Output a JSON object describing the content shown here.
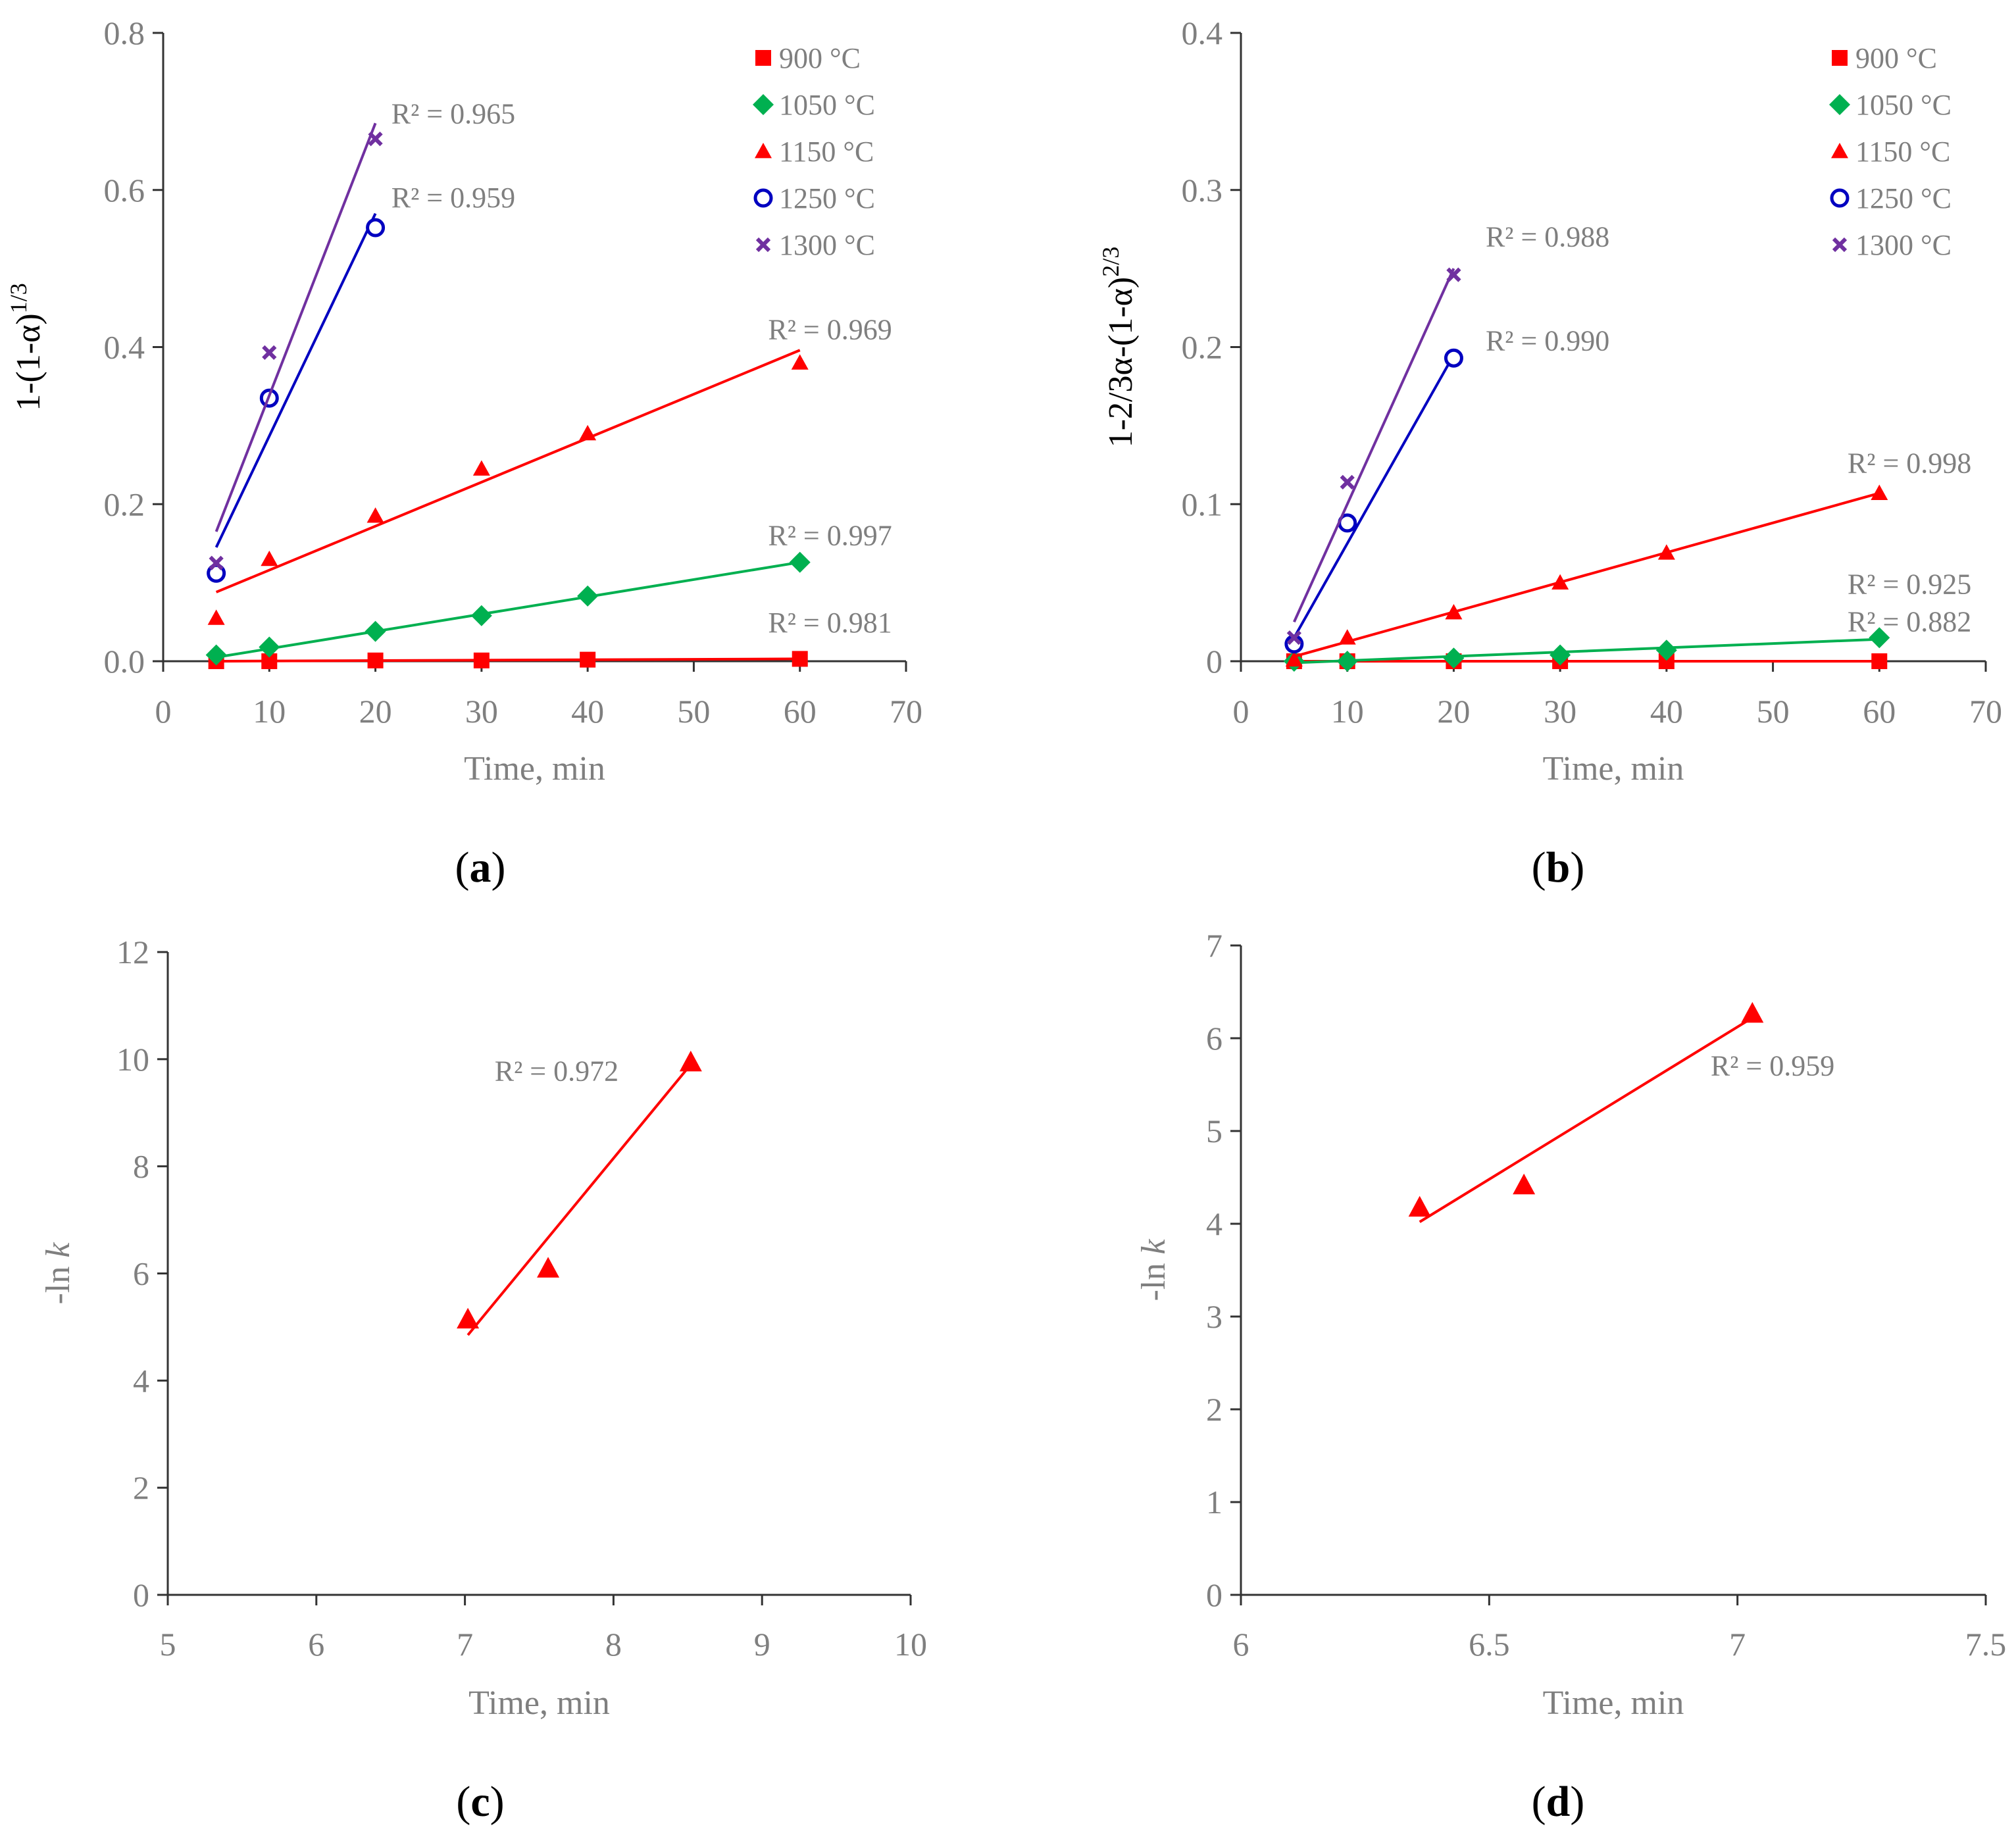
{
  "colors": {
    "axis": "#333333",
    "text": "#7f7f7f",
    "label": "#000000",
    "red": "#ff0000",
    "green": "#00b050",
    "blue": "#0000c0",
    "purple": "#7030a0"
  },
  "chart_data": [
    {
      "id": "a",
      "type": "scatter",
      "panel_label": {
        "open": "(",
        "letter": "a",
        "close": ")"
      },
      "xlabel": "Time, min",
      "ylabel": {
        "base": "1-(1-α)",
        "sup": "1/3"
      },
      "xlim": [
        0,
        70
      ],
      "ylim": [
        0,
        0.8
      ],
      "xticks": [
        "0",
        "10",
        "20",
        "30",
        "40",
        "50",
        "60",
        "70"
      ],
      "yticks": [
        "0.0",
        "0.2",
        "0.4",
        "0.6",
        "0.8"
      ],
      "legend_position": "top-right",
      "series": [
        {
          "name": "900 °C",
          "marker": "square",
          "color": "#ff0000",
          "x": [
            5,
            10,
            20,
            30,
            40,
            60
          ],
          "y": [
            0.0,
            0.0,
            0.001,
            0.001,
            0.002,
            0.003
          ],
          "fit": [
            [
              5,
              0.0
            ],
            [
              60,
              0.003
            ]
          ],
          "r2": {
            "text": "R² = 0.981",
            "x": 60,
            "y": 0.037
          }
        },
        {
          "name": "1050 °C",
          "marker": "diamond",
          "color": "#00b050",
          "x": [
            5,
            10,
            20,
            30,
            40,
            60
          ],
          "y": [
            0.008,
            0.018,
            0.038,
            0.058,
            0.083,
            0.126
          ],
          "fit": [
            [
              5,
              0.005
            ],
            [
              60,
              0.126
            ]
          ],
          "r2": {
            "text": "R² = 0.997",
            "x": 60,
            "y": 0.148
          }
        },
        {
          "name": "1150 °C",
          "marker": "triangle",
          "color": "#ff0000",
          "x": [
            5,
            10,
            20,
            30,
            40,
            60
          ],
          "y": [
            0.055,
            0.13,
            0.185,
            0.245,
            0.29,
            0.38
          ],
          "fit": [
            [
              5,
              0.088
            ],
            [
              60,
              0.396
            ]
          ],
          "r2": {
            "text": "R² = 0.969",
            "x": 60,
            "y": 0.41
          }
        },
        {
          "name": "1250 °C",
          "marker": "circle",
          "color": "#0000c0",
          "x": [
            5,
            10,
            20
          ],
          "y": [
            0.112,
            0.335,
            0.552
          ],
          "fit": [
            [
              5,
              0.145
            ],
            [
              20,
              0.57
            ]
          ],
          "r2": {
            "text": "R² = 0.959",
            "x": 21.5,
            "y": 0.578
          }
        },
        {
          "name": "1300 °C",
          "marker": "x",
          "color": "#7030a0",
          "x": [
            5,
            10,
            20
          ],
          "y": [
            0.125,
            0.393,
            0.665
          ],
          "fit": [
            [
              5,
              0.165
            ],
            [
              20,
              0.685
            ]
          ],
          "r2": {
            "text": "R² = 0.965",
            "x": 21.5,
            "y": 0.685
          }
        }
      ]
    },
    {
      "id": "b",
      "type": "scatter",
      "panel_label": {
        "open": "(",
        "letter": "b",
        "close": ")"
      },
      "xlabel": "Time, min",
      "ylabel": {
        "base": "1-2/3α-(1-α)",
        "sup": "2/3"
      },
      "xlim": [
        0,
        70
      ],
      "ylim": [
        0,
        0.4
      ],
      "xticks": [
        "0",
        "10",
        "20",
        "30",
        "40",
        "50",
        "60",
        "70"
      ],
      "yticks": [
        "0",
        "0.1",
        "0.2",
        "0.3",
        "0.4"
      ],
      "legend_position": "top-right",
      "series": [
        {
          "name": "900 °C",
          "marker": "square",
          "color": "#ff0000",
          "x": [
            5,
            10,
            20,
            30,
            40,
            60
          ],
          "y": [
            0.0,
            0.0,
            0.0,
            0.0,
            0.0,
            0.0
          ],
          "fit": [
            [
              5,
              0.0
            ],
            [
              60,
              0.0
            ]
          ],
          "r2": {
            "text": "R² = 0.882",
            "x": 60,
            "y": 0.019
          }
        },
        {
          "name": "1050 °C",
          "marker": "diamond",
          "color": "#00b050",
          "x": [
            5,
            10,
            20,
            30,
            40,
            60
          ],
          "y": [
            0.0,
            0.0,
            0.002,
            0.004,
            0.007,
            0.015
          ],
          "fit": [
            [
              5,
              -0.001
            ],
            [
              60,
              0.014
            ]
          ],
          "r2": {
            "text": "R² = 0.925",
            "x": 60,
            "y": 0.043
          }
        },
        {
          "name": "1150 °C",
          "marker": "triangle",
          "color": "#ff0000",
          "x": [
            5,
            10,
            20,
            30,
            40,
            60
          ],
          "y": [
            0.001,
            0.015,
            0.031,
            0.05,
            0.069,
            0.107
          ],
          "fit": [
            [
              5,
              0.003
            ],
            [
              60,
              0.107
            ]
          ],
          "r2": {
            "text": "R² = 0.998",
            "x": 60,
            "y": 0.12
          }
        },
        {
          "name": "1250 °C",
          "marker": "circle",
          "color": "#0000c0",
          "x": [
            5,
            10,
            20
          ],
          "y": [
            0.011,
            0.088,
            0.193
          ],
          "fit": [
            [
              5,
              0.015
            ],
            [
              20,
              0.195
            ]
          ],
          "r2": {
            "text": "R² = 0.990",
            "x": 23,
            "y": 0.198
          }
        },
        {
          "name": "1300 °C",
          "marker": "x",
          "color": "#7030a0",
          "x": [
            5,
            10,
            20
          ],
          "y": [
            0.015,
            0.114,
            0.246
          ],
          "fit": [
            [
              5,
              0.025
            ],
            [
              20,
              0.25
            ]
          ],
          "r2": {
            "text": "R² = 0.988",
            "x": 23,
            "y": 0.264
          }
        }
      ]
    },
    {
      "id": "c",
      "type": "scatter",
      "panel_label": {
        "open": "(",
        "letter": "c",
        "close": ")"
      },
      "xlabel": "Time, min",
      "ylabel": {
        "base": "-ln ",
        "italic": "k"
      },
      "xlim": [
        5,
        10
      ],
      "ylim": [
        0,
        12
      ],
      "xticks": [
        "5",
        "6",
        "7",
        "8",
        "9",
        "10"
      ],
      "yticks": [
        "0",
        "2",
        "4",
        "6",
        "8",
        "10",
        "12"
      ],
      "series": [
        {
          "name": "",
          "marker": "triangle-large",
          "color": "#ff0000",
          "x": [
            7.02,
            7.56,
            8.52
          ],
          "y": [
            5.15,
            6.1,
            9.95
          ],
          "fit": [
            [
              7.02,
              4.85
            ],
            [
              8.52,
              9.9
            ]
          ],
          "r2": {
            "text": "R² = 0.972",
            "x": 7.2,
            "y": 9.6
          }
        }
      ]
    },
    {
      "id": "d",
      "type": "scatter",
      "panel_label": {
        "open": "(",
        "letter": "d",
        "close": ")"
      },
      "xlabel": "Time, min",
      "ylabel": {
        "base": "-ln ",
        "italic": "k"
      },
      "xlim": [
        6,
        7.5
      ],
      "ylim": [
        0,
        7
      ],
      "xticks": [
        "6",
        "6.5",
        "7",
        "7.5"
      ],
      "yticks": [
        "0",
        "1",
        "2",
        "3",
        "4",
        "5",
        "6",
        "7"
      ],
      "series": [
        {
          "name": "",
          "marker": "triangle-large",
          "color": "#ff0000",
          "x": [
            6.36,
            6.57,
            7.03
          ],
          "y": [
            4.18,
            4.42,
            6.27
          ],
          "fit": [
            [
              6.36,
              4.02
            ],
            [
              7.03,
              6.22
            ]
          ],
          "r2": {
            "text": "R² = 0.959",
            "x": 7.01,
            "y": 5.6
          }
        }
      ]
    }
  ]
}
